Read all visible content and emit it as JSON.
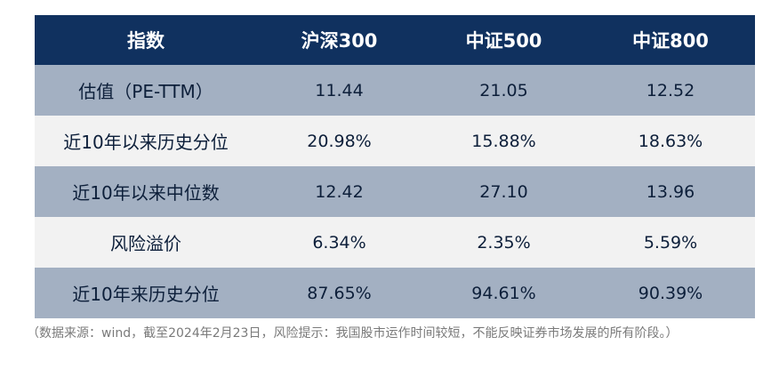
{
  "table": {
    "headers": [
      "指数",
      "沪深300",
      "中证500",
      "中证800"
    ],
    "rows": [
      {
        "label": "估值（PE-TTM）",
        "values": [
          "11.44",
          "21.05",
          "12.52"
        ]
      },
      {
        "label": "近10年以来历史分位",
        "values": [
          "20.98%",
          "15.88%",
          "18.63%"
        ]
      },
      {
        "label": "近10年以来中位数",
        "values": [
          "12.42",
          "27.10",
          "13.96"
        ]
      },
      {
        "label": "风险溢价",
        "values": [
          "6.34%",
          "2.35%",
          "5.59%"
        ]
      },
      {
        "label": "近10年来历史分位",
        "values": [
          "87.65%",
          "94.61%",
          "90.39%"
        ]
      }
    ]
  },
  "note": "（数据来源：wind，截至2024年2月23日，风险提示：我国股市运作时间较短，不能反映证券市场发展的所有阶段。）",
  "colors": {
    "header_bg": "#10315f",
    "row_dark": "#a3b0c2",
    "row_light": "#f2f2f2"
  }
}
